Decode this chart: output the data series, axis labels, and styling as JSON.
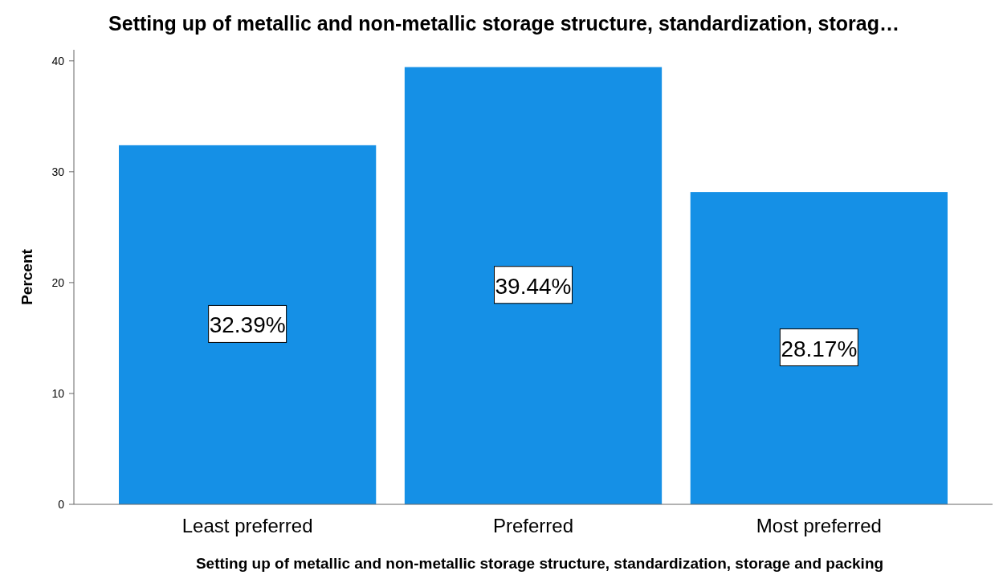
{
  "chart_data": {
    "type": "bar",
    "title": "Setting up of metallic and non-metallic storage structure, standardization, storag…",
    "xlabel": "Setting up of metallic and non-metallic storage structure, standardization, storage and packing",
    "ylabel": "Percent",
    "categories": [
      "Least preferred",
      "Preferred",
      "Most preferred"
    ],
    "values": [
      32.39,
      39.44,
      28.17
    ],
    "value_labels": [
      "32.39%",
      "39.44%",
      "28.17%"
    ],
    "color": "#1590e6",
    "ylim": [
      0,
      41
    ],
    "yticks": [
      0,
      10,
      20,
      30,
      40
    ],
    "grid": false
  }
}
